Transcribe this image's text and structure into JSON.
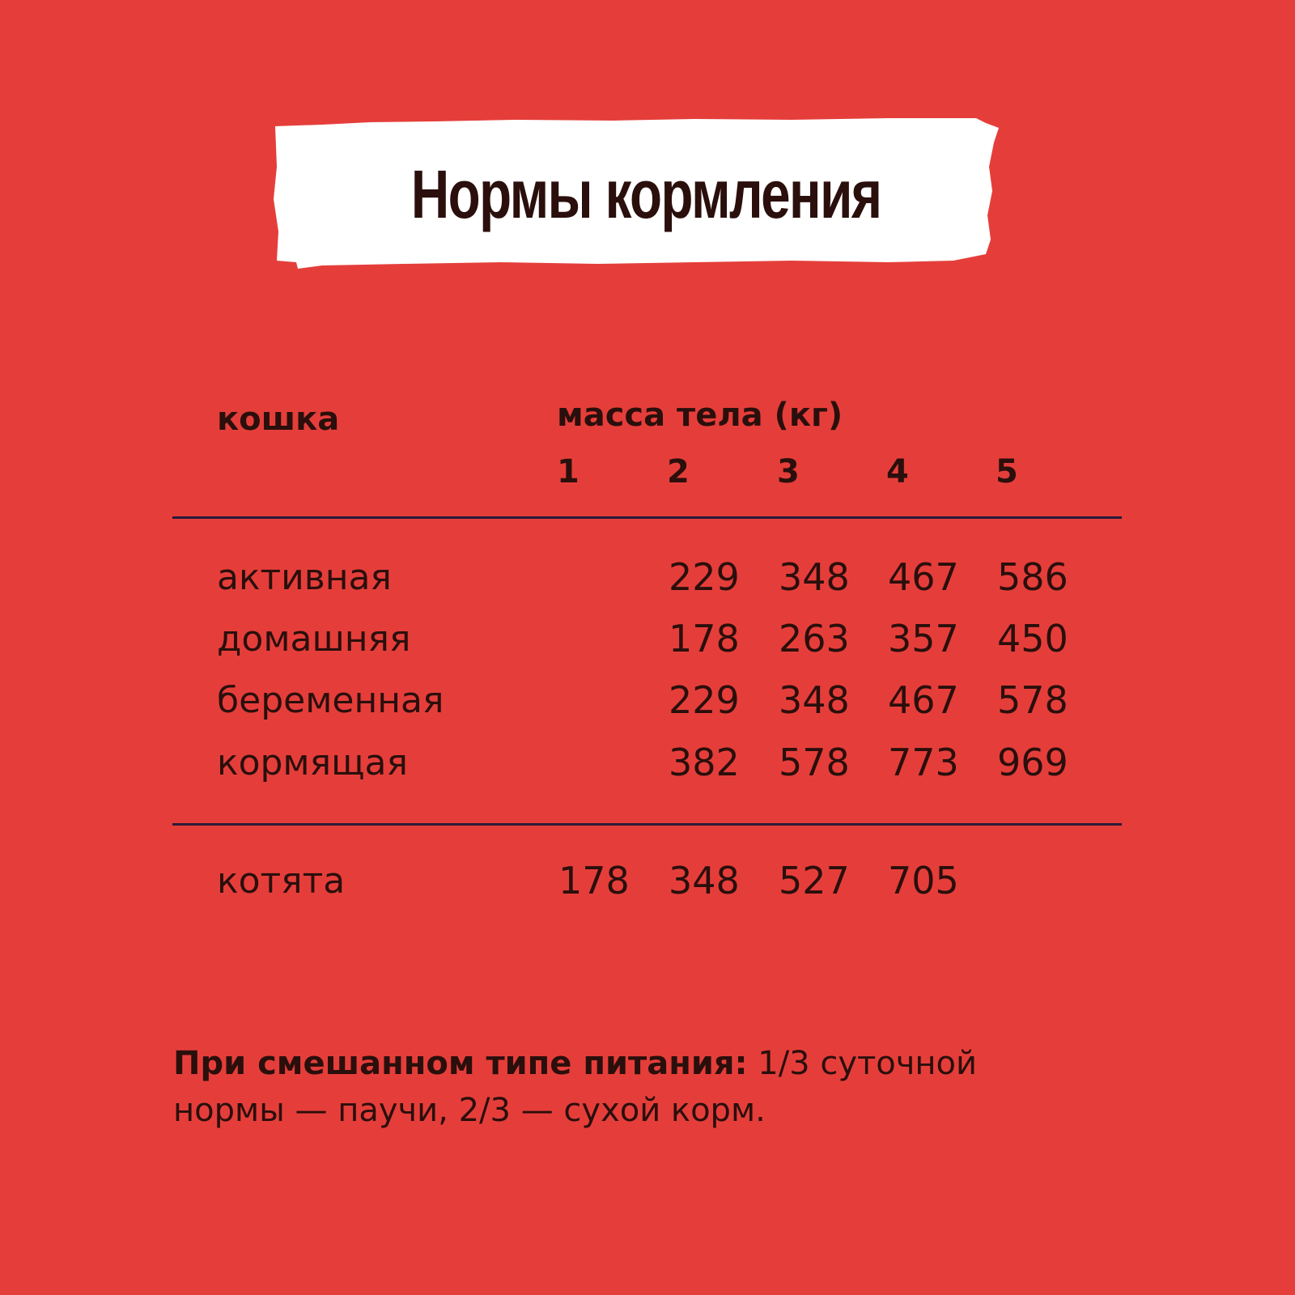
{
  "title": "Нормы кормления",
  "table": {
    "row_header": "кошка",
    "column_group_header": "масса тела (кг)",
    "columns": [
      "1",
      "2",
      "3",
      "4",
      "5"
    ],
    "rows": [
      {
        "label": "активная",
        "values": [
          "",
          "229",
          "348",
          "467",
          "586"
        ]
      },
      {
        "label": "домашняя",
        "values": [
          "",
          "178",
          "263",
          "357",
          "450"
        ]
      },
      {
        "label": "беременная",
        "values": [
          "",
          "229",
          "348",
          "467",
          "578"
        ]
      },
      {
        "label": "кормящая",
        "values": [
          "",
          "382",
          "578",
          "773",
          "969"
        ]
      }
    ],
    "kittens": {
      "label": "котята",
      "values": [
        "178",
        "348",
        "527",
        "705",
        ""
      ]
    }
  },
  "footnote": {
    "bold": "При смешанном типе питания:",
    "line1": " 1/3 суточной",
    "line2": "нормы — паучи, 2/3 — сухой корм."
  },
  "colors": {
    "background": "#E53E3A",
    "text": "#2a0f0c",
    "title_box": "#ffffff"
  }
}
